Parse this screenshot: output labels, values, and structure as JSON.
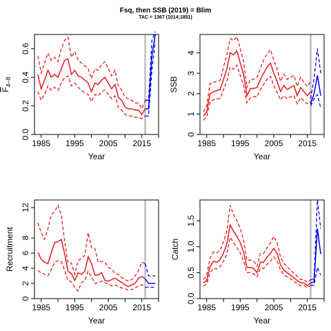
{
  "title": "Fsq, then SSB (2019) = Blim",
  "subtitle": "TAC = 1367 (1014;1851)",
  "colors": {
    "historic": "#e41a1c",
    "projection": "#0000ee",
    "divider": "#bdbdbd"
  },
  "chart_data": [
    {
      "type": "line",
      "panel": "top-left",
      "xlabel": "Year",
      "ylabel": "F̄4–8",
      "ylabel_main": "F",
      "ylabel_sub": "4–8",
      "xlim": [
        1983,
        2020
      ],
      "ylim": [
        0,
        0.7
      ],
      "xticks": [
        "1985",
        "1995",
        "2005",
        "2015"
      ],
      "yticks": [
        "0.0",
        "0.2",
        "0.4",
        "0.6"
      ],
      "divider_x": 2016,
      "hist_x": [
        1984,
        1985,
        1986,
        1987,
        1988,
        1989,
        1990,
        1991,
        1992,
        1993,
        1994,
        1995,
        1996,
        1997,
        1998,
        1999,
        2000,
        2001,
        2002,
        2003,
        2004,
        2005,
        2006,
        2007,
        2008,
        2009,
        2010,
        2011,
        2012,
        2013,
        2014,
        2015,
        2016
      ],
      "hist_y": [
        0.42,
        0.32,
        0.38,
        0.45,
        0.4,
        0.42,
        0.4,
        0.46,
        0.52,
        0.53,
        0.42,
        0.45,
        0.41,
        0.4,
        0.38,
        0.36,
        0.3,
        0.36,
        0.35,
        0.38,
        0.4,
        0.36,
        0.32,
        0.35,
        0.26,
        0.24,
        0.19,
        0.18,
        0.18,
        0.17,
        0.17,
        0.14,
        0.18
      ],
      "hist_lo": [
        0.3,
        0.24,
        0.28,
        0.34,
        0.31,
        0.33,
        0.31,
        0.36,
        0.4,
        0.41,
        0.34,
        0.36,
        0.33,
        0.31,
        0.29,
        0.28,
        0.23,
        0.28,
        0.27,
        0.3,
        0.31,
        0.28,
        0.25,
        0.27,
        0.19,
        0.17,
        0.14,
        0.13,
        0.13,
        0.12,
        0.12,
        0.11,
        0.13
      ],
      "hist_hi": [
        0.55,
        0.43,
        0.5,
        0.57,
        0.52,
        0.54,
        0.51,
        0.6,
        0.66,
        0.68,
        0.54,
        0.58,
        0.52,
        0.5,
        0.48,
        0.46,
        0.39,
        0.46,
        0.45,
        0.49,
        0.51,
        0.46,
        0.41,
        0.45,
        0.34,
        0.31,
        0.26,
        0.25,
        0.24,
        0.22,
        0.22,
        0.18,
        0.24
      ],
      "proj_x": [
        2016,
        2017,
        2018,
        2019
      ],
      "proj_y": [
        0.18,
        0.18,
        0.55,
        0.7
      ],
      "proj_lo": [
        0.13,
        0.13,
        0.45,
        0.65
      ],
      "proj_hi": [
        0.24,
        0.24,
        0.66,
        0.72
      ]
    },
    {
      "type": "line",
      "panel": "top-right",
      "xlabel": "Year",
      "ylabel": "SSB",
      "xlim": [
        1983,
        2020
      ],
      "ylim": [
        0,
        4.9
      ],
      "xticks": [
        "1985",
        "1995",
        "2005",
        "2015"
      ],
      "yticks": [
        "0",
        "1",
        "2",
        "3",
        "4"
      ],
      "divider_x": 2016,
      "hist_x": [
        1984,
        1985,
        1986,
        1987,
        1988,
        1989,
        1990,
        1991,
        1992,
        1993,
        1994,
        1995,
        1996,
        1997,
        1998,
        1999,
        2000,
        2001,
        2002,
        2003,
        2004,
        2005,
        2006,
        2007,
        2008,
        2009,
        2010,
        2011,
        2012,
        2013,
        2014,
        2015,
        2016
      ],
      "hist_y": [
        0.9,
        1.1,
        2.0,
        2.1,
        2.15,
        2.2,
        2.7,
        3.2,
        4.0,
        3.9,
        4.1,
        3.5,
        2.95,
        1.9,
        2.25,
        2.25,
        2.3,
        2.7,
        3.0,
        3.3,
        3.5,
        3.0,
        2.6,
        2.1,
        2.4,
        2.2,
        2.3,
        2.4,
        1.9,
        2.3,
        2.1,
        1.9,
        2.1
      ],
      "hist_lo": [
        0.7,
        0.85,
        1.6,
        1.7,
        1.75,
        1.75,
        2.2,
        2.6,
        3.3,
        3.2,
        3.4,
        2.9,
        2.4,
        1.55,
        1.8,
        1.85,
        1.85,
        2.2,
        2.45,
        2.7,
        2.85,
        2.4,
        2.05,
        1.7,
        1.9,
        1.75,
        1.85,
        1.9,
        1.5,
        1.8,
        1.65,
        1.5,
        1.6
      ],
      "hist_hi": [
        1.1,
        1.4,
        2.5,
        2.55,
        2.6,
        2.65,
        3.3,
        3.9,
        4.7,
        4.6,
        4.8,
        4.2,
        3.6,
        2.3,
        2.7,
        2.7,
        2.8,
        3.25,
        3.65,
        3.95,
        4.15,
        3.65,
        3.2,
        2.6,
        2.95,
        2.7,
        2.8,
        2.9,
        2.35,
        2.8,
        2.55,
        2.35,
        2.6
      ],
      "proj_x": [
        2016,
        2017,
        2018,
        2019
      ],
      "proj_y": [
        1.5,
        2.0,
        2.9,
        1.9
      ],
      "proj_lo": [
        1.4,
        1.75,
        1.95,
        1.3
      ],
      "proj_hi": [
        1.75,
        2.75,
        4.2,
        3.0
      ]
    },
    {
      "type": "line",
      "panel": "bottom-left",
      "xlabel": "Year",
      "ylabel": "Recruitment",
      "xlim": [
        1983,
        2020
      ],
      "ylim": [
        0,
        13
      ],
      "xticks": [
        "1985",
        "1995",
        "2005",
        "2015"
      ],
      "yticks": [
        "0",
        "2",
        "4",
        "6",
        "8",
        "12"
      ],
      "divider_x": 2016,
      "hist_x": [
        1984,
        1985,
        1986,
        1987,
        1988,
        1989,
        1990,
        1991,
        1992,
        1993,
        1994,
        1995,
        1996,
        1997,
        1998,
        1999,
        2000,
        2001,
        2002,
        2003,
        2004,
        2005,
        2006,
        2007,
        2008,
        2009,
        2010,
        2011,
        2012,
        2013,
        2014,
        2015,
        2016
      ],
      "hist_y": [
        6.1,
        5.2,
        4.8,
        4.6,
        6.0,
        7.4,
        7.5,
        7.8,
        5.9,
        3.6,
        3.3,
        2.4,
        3.4,
        3.2,
        3.6,
        5.5,
        4.6,
        3.1,
        3.1,
        3.4,
        2.4,
        2.3,
        2.5,
        2.7,
        2.4,
        2.1,
        1.8,
        1.6,
        1.8,
        2.0,
        2.7,
        2.9,
        2.6
      ],
      "hist_lo": [
        3.7,
        3.4,
        3.2,
        3.0,
        3.8,
        4.8,
        5.0,
        4.9,
        3.7,
        2.4,
        2.2,
        1.5,
        1.0,
        2.1,
        2.4,
        3.6,
        2.9,
        2.0,
        2.1,
        2.3,
        2.1,
        1.9,
        1.7,
        1.8,
        1.6,
        1.4,
        1.3,
        1.1,
        1.2,
        1.4,
        1.7,
        1.8,
        1.7
      ],
      "hist_hi": [
        10.0,
        8.7,
        7.8,
        9.2,
        11.0,
        11.5,
        12.3,
        11.0,
        7.5,
        4.7,
        4.7,
        3.2,
        5.0,
        5.3,
        5.7,
        8.7,
        6.7,
        6.6,
        4.8,
        4.9,
        4.8,
        4.1,
        3.9,
        3.3,
        3.2,
        2.8,
        2.5,
        2.3,
        2.5,
        3.0,
        3.7,
        4.8,
        4.6
      ],
      "proj_x": [
        2016,
        2017,
        2018,
        2019
      ],
      "proj_y": [
        2.6,
        2.0,
        2.0,
        2.0
      ],
      "proj_lo": [
        1.5,
        1.5,
        1.5,
        1.5
      ],
      "proj_hi": [
        4.6,
        3.0,
        3.0,
        3.0
      ]
    },
    {
      "type": "line",
      "panel": "bottom-right",
      "xlabel": "Year",
      "ylabel": "Catch",
      "xlim": [
        1983,
        2020
      ],
      "ylim": [
        0,
        1.9
      ],
      "xticks": [
        "1985",
        "1995",
        "2005",
        "2015"
      ],
      "yticks": [
        "0.0",
        "0.5",
        "1.0",
        "1.5"
      ],
      "divider_x": 2016,
      "hist_x": [
        1984,
        1985,
        1986,
        1987,
        1988,
        1989,
        1990,
        1991,
        1992,
        1993,
        1994,
        1995,
        1996,
        1997,
        1998,
        1999,
        2000,
        2001,
        2002,
        2003,
        2004,
        2005,
        2006,
        2007,
        2008,
        2009,
        2010,
        2011,
        2012,
        2013,
        2014,
        2015,
        2016
      ],
      "hist_y": [
        0.3,
        0.35,
        0.62,
        0.72,
        0.7,
        0.75,
        0.88,
        1.05,
        1.42,
        1.3,
        1.2,
        1.08,
        0.9,
        0.6,
        0.6,
        0.58,
        0.5,
        0.7,
        0.7,
        0.8,
        0.87,
        0.97,
        0.87,
        0.65,
        0.55,
        0.5,
        0.45,
        0.4,
        0.35,
        0.3,
        0.3,
        0.25,
        0.3
      ],
      "hist_lo": [
        0.24,
        0.28,
        0.5,
        0.58,
        0.57,
        0.62,
        0.72,
        0.86,
        1.18,
        1.08,
        0.98,
        0.88,
        0.73,
        0.5,
        0.5,
        0.48,
        0.42,
        0.58,
        0.58,
        0.66,
        0.72,
        0.8,
        0.72,
        0.55,
        0.46,
        0.42,
        0.38,
        0.33,
        0.29,
        0.25,
        0.25,
        0.21,
        0.25
      ],
      "hist_hi": [
        0.37,
        0.44,
        0.78,
        0.9,
        0.88,
        0.93,
        1.1,
        1.3,
        1.8,
        1.62,
        1.5,
        1.35,
        1.12,
        0.74,
        0.74,
        0.72,
        0.62,
        0.87,
        0.87,
        0.98,
        1.07,
        1.2,
        1.07,
        0.8,
        0.68,
        0.61,
        0.55,
        0.49,
        0.43,
        0.37,
        0.37,
        0.31,
        0.37
      ],
      "proj_x": [
        2016,
        2017,
        2018,
        2019
      ],
      "proj_y": [
        0.3,
        0.32,
        1.35,
        0.86
      ],
      "proj_lo": [
        0.25,
        0.26,
        0.6,
        0.45
      ],
      "proj_hi": [
        0.36,
        0.38,
        1.9,
        1.35
      ]
    }
  ]
}
